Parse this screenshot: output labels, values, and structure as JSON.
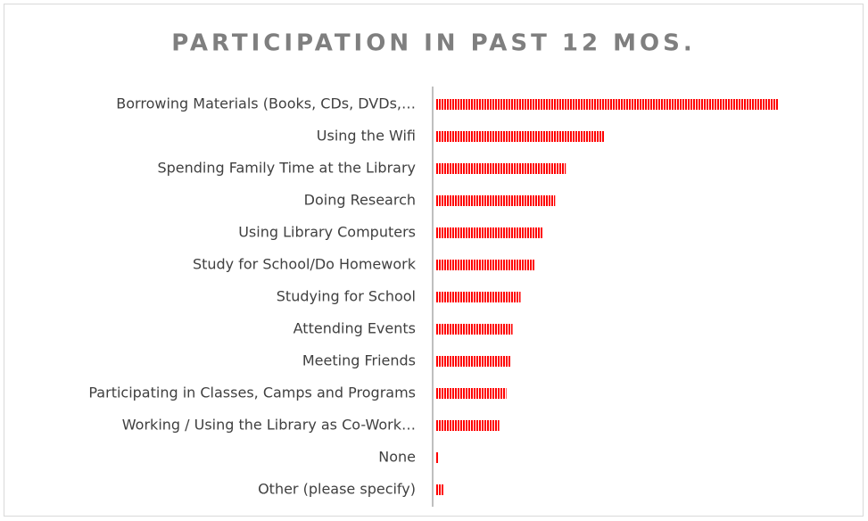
{
  "chart_data": {
    "type": "hbar",
    "title": "PARTICIPATION IN PAST 12 MOS.",
    "categories": [
      "Borrowing Materials (Books, CDs, DVDs,…",
      "Using the Wifi",
      "Spending Family Time at the Library",
      "Doing Research",
      "Using Library Computers",
      "Study for School/Do Homework",
      "Studying for School",
      "Attending Events",
      "Meeting Friends",
      "Participating in Classes, Camps and Programs",
      "Working / Using the Library as Co-Work…",
      "None",
      "Other (please specify)"
    ],
    "values": [
      386,
      190,
      147,
      135,
      121,
      112,
      96,
      87,
      85,
      80,
      72,
      4,
      9
    ],
    "color": "#ff0000"
  }
}
